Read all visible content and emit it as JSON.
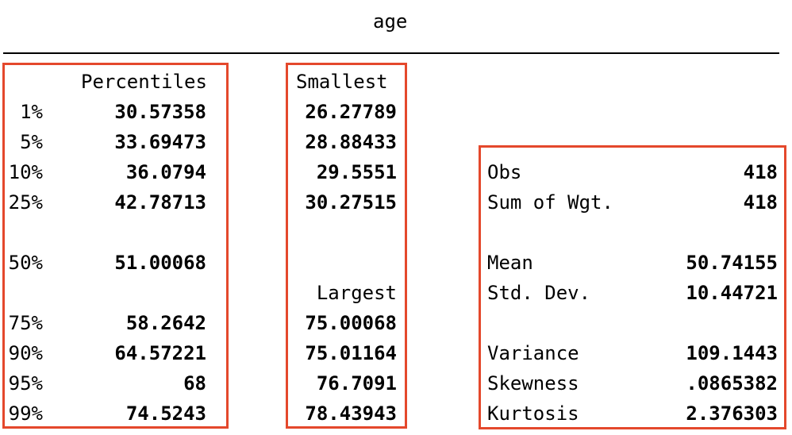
{
  "variable": "age",
  "percentiles_header": "Percentiles",
  "smallest_header": "Smallest",
  "largest_header": "Largest",
  "rows": [
    {
      "pct": "1%",
      "value": "30.57358",
      "extreme": "26.27789"
    },
    {
      "pct": "5%",
      "value": "33.69473",
      "extreme": "28.88433"
    },
    {
      "pct": "10%",
      "value": "36.0794",
      "extreme": "29.5551"
    },
    {
      "pct": "25%",
      "value": "42.78713",
      "extreme": "30.27515"
    },
    {
      "pct": "50%",
      "value": "51.00068",
      "extreme": ""
    },
    {
      "pct": "75%",
      "value": "58.2642",
      "extreme": "75.00068"
    },
    {
      "pct": "90%",
      "value": "64.57221",
      "extreme": "75.01164"
    },
    {
      "pct": "95%",
      "value": "68",
      "extreme": "76.7091"
    },
    {
      "pct": "99%",
      "value": "74.5243",
      "extreme": "78.43943"
    }
  ],
  "stats": [
    {
      "label": "Obs",
      "value": "418"
    },
    {
      "label": "Sum of Wgt.",
      "value": "418"
    },
    {
      "label": "Mean",
      "value": "50.74155"
    },
    {
      "label": "Std. Dev.",
      "value": "10.44721"
    },
    {
      "label": "Variance",
      "value": "109.1443"
    },
    {
      "label": "Skewness",
      "value": ".0865382"
    },
    {
      "label": "Kurtosis",
      "value": "2.376303"
    }
  ],
  "highlight_color": "#e4482c"
}
